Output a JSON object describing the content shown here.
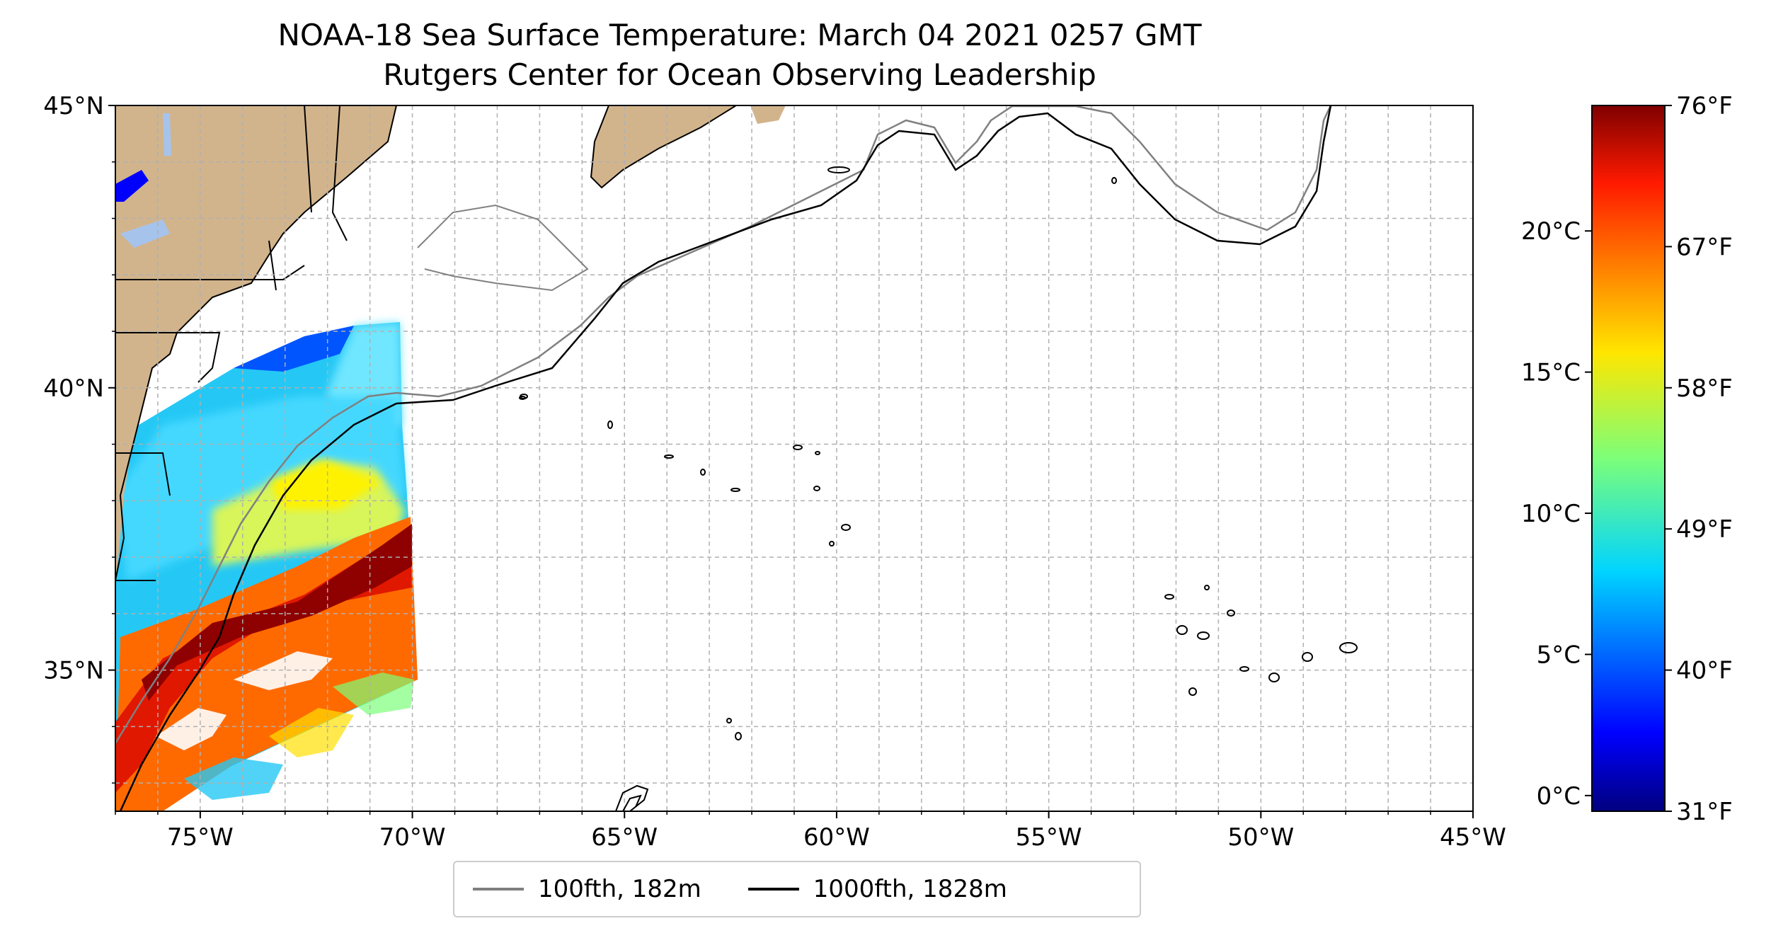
{
  "title": {
    "line1": "NOAA-18 Sea Surface Temperature: March 04 2021 0257 GMT",
    "line2": "Rutgers Center for Ocean Observing Leadership"
  },
  "map": {
    "lat_range": [
      32.5,
      45
    ],
    "lon_range": [
      -77,
      -45
    ],
    "lat_ticks": [
      {
        "value": 35,
        "label": "35°N"
      },
      {
        "value": 40,
        "label": "40°N"
      },
      {
        "value": 45,
        "label": "45°N"
      }
    ],
    "lon_ticks": [
      {
        "value": -75,
        "label": "75°W"
      },
      {
        "value": -70,
        "label": "70°W"
      },
      {
        "value": -65,
        "label": "65°W"
      },
      {
        "value": -60,
        "label": "60°W"
      },
      {
        "value": -55,
        "label": "55°W"
      },
      {
        "value": -50,
        "label": "50°W"
      },
      {
        "value": -45,
        "label": "45°W"
      }
    ],
    "grid": true,
    "land_color": "#d2b48c",
    "water_color": "#a6c3ec"
  },
  "legend": {
    "items": [
      {
        "label": "100fth, 182m",
        "color": "#808080"
      },
      {
        "label": "1000fth, 1828m",
        "color": "#000000"
      }
    ]
  },
  "colorbar": {
    "colormap": "jet",
    "celsius_ticks": [
      {
        "value": 0,
        "label": "0°C"
      },
      {
        "value": 5,
        "label": "5°C"
      },
      {
        "value": 10,
        "label": "10°C"
      },
      {
        "value": 15,
        "label": "15°C"
      },
      {
        "value": 20,
        "label": "20°C"
      }
    ],
    "fahrenheit_ticks": [
      {
        "value": 31,
        "label": "31°F"
      },
      {
        "value": 40,
        "label": "40°F"
      },
      {
        "value": 49,
        "label": "49°F"
      },
      {
        "value": 58,
        "label": "58°F"
      },
      {
        "value": 67,
        "label": "67°F"
      },
      {
        "value": 76,
        "label": "76°F"
      }
    ]
  }
}
